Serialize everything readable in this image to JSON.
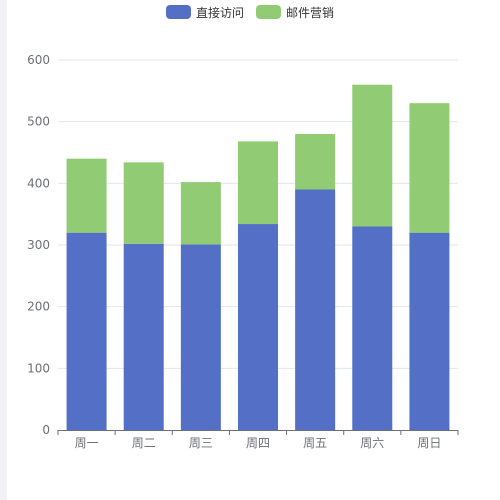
{
  "legend": {
    "items": [
      {
        "label": "直接访问",
        "color": "#5470c6"
      },
      {
        "label": "邮件营销",
        "color": "#91cc75"
      }
    ]
  },
  "chart_data": {
    "type": "bar",
    "stacked": true,
    "categories": [
      "周一",
      "周二",
      "周三",
      "周四",
      "周五",
      "周六",
      "周日"
    ],
    "series": [
      {
        "name": "直接访问",
        "color": "#5470c6",
        "values": [
          320,
          302,
          301,
          334,
          390,
          330,
          320
        ]
      },
      {
        "name": "邮件营销",
        "color": "#91cc75",
        "values": [
          120,
          132,
          101,
          134,
          90,
          230,
          210
        ]
      }
    ],
    "ylim": [
      0,
      600
    ],
    "yticks": [
      0,
      100,
      200,
      300,
      400,
      500,
      600
    ],
    "grid": true,
    "legend_position": "top-center"
  }
}
